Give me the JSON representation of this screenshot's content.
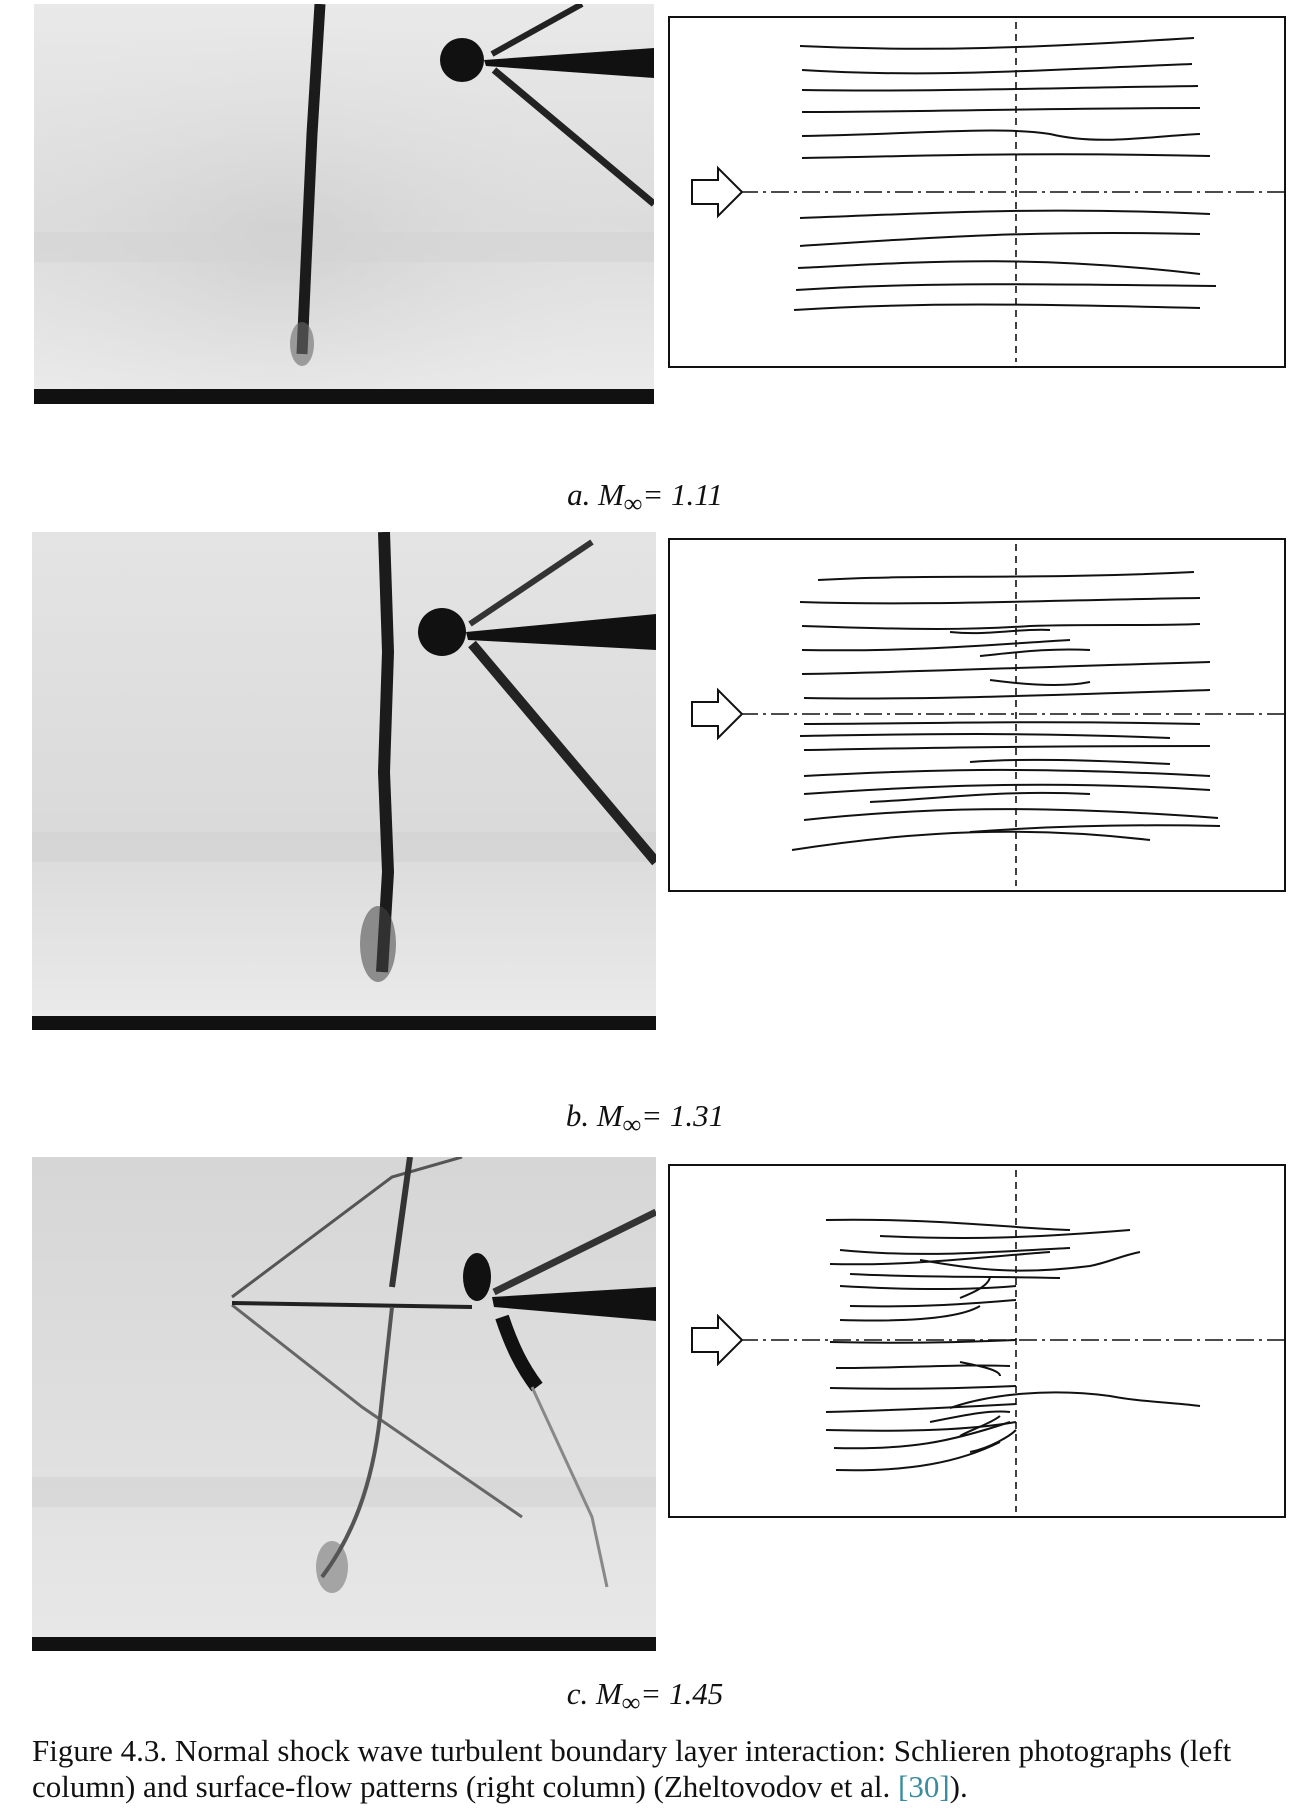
{
  "figure": {
    "panels": [
      {
        "id": "a",
        "label_prefix": "a. M",
        "label_sub": "∞",
        "label_value": "= 1.11"
      },
      {
        "id": "b",
        "label_prefix": "b. M",
        "label_sub": "∞",
        "label_value": "= 1.31"
      },
      {
        "id": "c",
        "label_prefix": "c. M",
        "label_sub": "∞",
        "label_value": "= 1.45"
      }
    ],
    "caption_text": "Figure 4.3. Normal shock wave turbulent boundary layer interaction: Schlieren photographs (left column) and surface-flow patterns (right column) (Zheltovodov et al. ",
    "caption_ref": "[30]",
    "caption_end": ")."
  }
}
